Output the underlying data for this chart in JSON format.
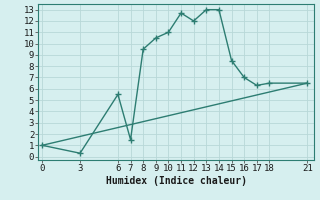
{
  "line1_x": [
    0,
    21
  ],
  "line1_y": [
    1,
    6.5
  ],
  "line2_x": [
    0,
    3,
    6,
    7,
    8,
    9,
    10,
    11,
    12,
    13,
    14,
    15,
    16,
    17,
    18,
    21
  ],
  "line2_y": [
    1,
    0.3,
    5.5,
    1.5,
    9.5,
    10.5,
    11.0,
    12.7,
    12.0,
    13.0,
    13.0,
    8.5,
    7.0,
    6.3,
    6.5,
    6.5
  ],
  "line_color": "#2d7d72",
  "marker": "+",
  "marker_size": 4,
  "marker_linewidth": 1.0,
  "xlabel": "Humidex (Indice chaleur)",
  "xticks": [
    0,
    3,
    6,
    7,
    8,
    9,
    10,
    11,
    12,
    13,
    14,
    15,
    16,
    17,
    18,
    21
  ],
  "yticks": [
    0,
    1,
    2,
    3,
    4,
    5,
    6,
    7,
    8,
    9,
    10,
    11,
    12,
    13
  ],
  "xlim": [
    -0.3,
    21.5
  ],
  "ylim": [
    -0.3,
    13.5
  ],
  "bg_color": "#d6efef",
  "grid_color": "#b8d8d8",
  "xlabel_fontsize": 7,
  "tick_fontsize": 6.5,
  "linewidth": 1.0,
  "fig_width": 3.2,
  "fig_height": 2.0,
  "dpi": 100
}
